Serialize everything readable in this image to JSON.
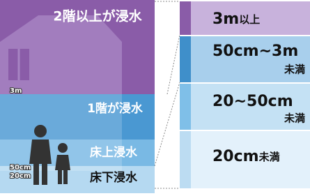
{
  "diagram": {
    "left": {
      "floor2": "2階以上が浸水",
      "floor1": "1階が浸水",
      "above_floor": "床上浸水",
      "below_floor": "床下浸水",
      "depth_labels": [
        "3m",
        "50cm",
        "20cm"
      ]
    },
    "legend": [
      {
        "main": "3m",
        "sub": "以上"
      },
      {
        "main": "50cm~3m",
        "sub": "未満"
      },
      {
        "main": "20~50cm",
        "sub": "未満"
      },
      {
        "main": "20cm",
        "sub": "未満"
      }
    ]
  }
}
